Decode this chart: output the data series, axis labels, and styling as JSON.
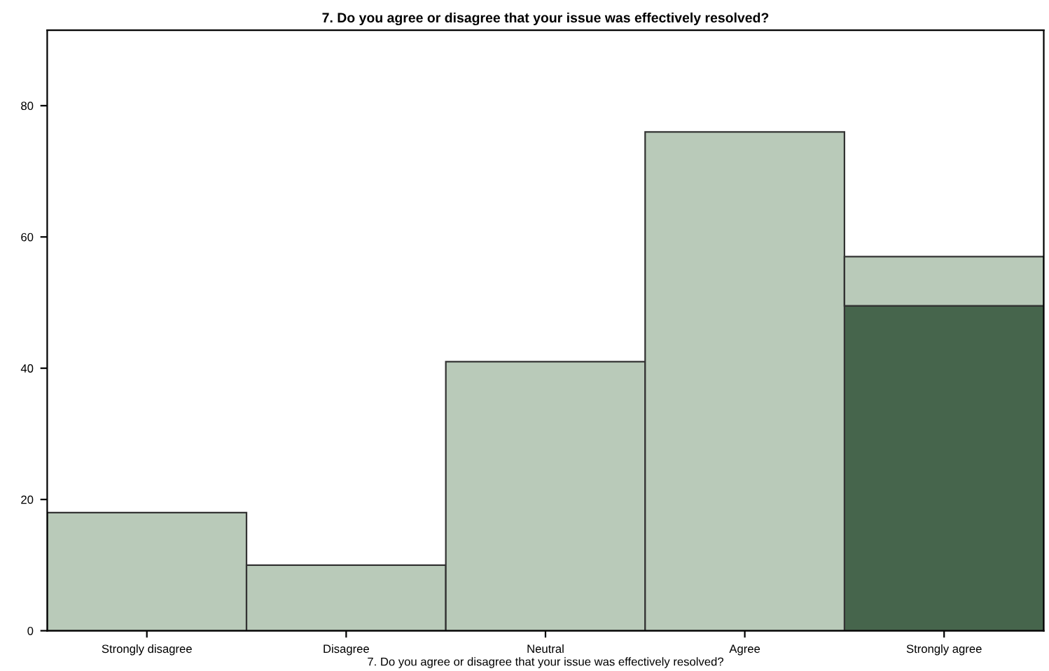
{
  "chart_data": {
    "type": "bar",
    "title": "7. Do you agree or disagree that your issue was effectively resolved?",
    "xlabel": "7. Do you agree or disagree that your issue was effectively resolved?",
    "categories": [
      "Strongly disagree",
      "Disagree",
      "Neutral",
      "Agree",
      "Strongly agree"
    ],
    "stacked": true,
    "series": [
      {
        "color": "#46654c",
        "values": [
          0,
          0,
          0,
          0,
          49.5
        ]
      },
      {
        "color": "#b9cab9",
        "values": [
          18,
          10,
          41,
          76,
          7.5
        ]
      }
    ],
    "ylim": [
      0,
      91.5
    ],
    "yticks": [
      0,
      20,
      40,
      60,
      80
    ],
    "grid": false,
    "legend": false
  }
}
